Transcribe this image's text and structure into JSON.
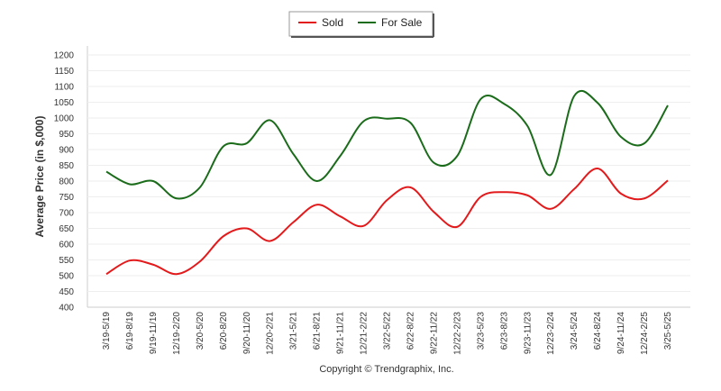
{
  "chart_data": {
    "type": "line",
    "title": "",
    "xlabel": "",
    "ylabel": "Average Price (in $,000)",
    "ylim": [
      400,
      1200
    ],
    "ytick_step": 50,
    "grid": true,
    "legend_position": "top-center",
    "categories": [
      "3/19-5/19",
      "6/19-8/19",
      "9/19-11/19",
      "12/19-2/20",
      "3/20-5/20",
      "6/20-8/20",
      "9/20-11/20",
      "12/20-2/21",
      "3/21-5/21",
      "6/21-8/21",
      "9/21-11/21",
      "12/21-2/22",
      "3/22-5/22",
      "6/22-8/22",
      "9/22-11/22",
      "12/22-2/23",
      "3/23-5/23",
      "6/23-8/23",
      "9/23-11/23",
      "12/23-2/24",
      "3/24-5/24",
      "6/24-8/24",
      "9/24-11/24",
      "12/24-2/25",
      "3/25-5/25"
    ],
    "series": [
      {
        "name": "Sold",
        "color": "#e31a1c",
        "values": [
          505,
          548,
          535,
          505,
          545,
          625,
          650,
          610,
          670,
          725,
          688,
          658,
          740,
          780,
          702,
          655,
          750,
          765,
          755,
          712,
          775,
          840,
          760,
          745,
          802
        ]
      },
      {
        "name": "For Sale",
        "color": "#1a6b1a",
        "values": [
          830,
          790,
          800,
          745,
          780,
          910,
          920,
          993,
          885,
          800,
          880,
          990,
          998,
          985,
          858,
          880,
          1060,
          1045,
          975,
          820,
          1070,
          1048,
          940,
          920,
          1040
        ]
      }
    ],
    "copyright": "Copyright © Trendgraphix, Inc."
  }
}
